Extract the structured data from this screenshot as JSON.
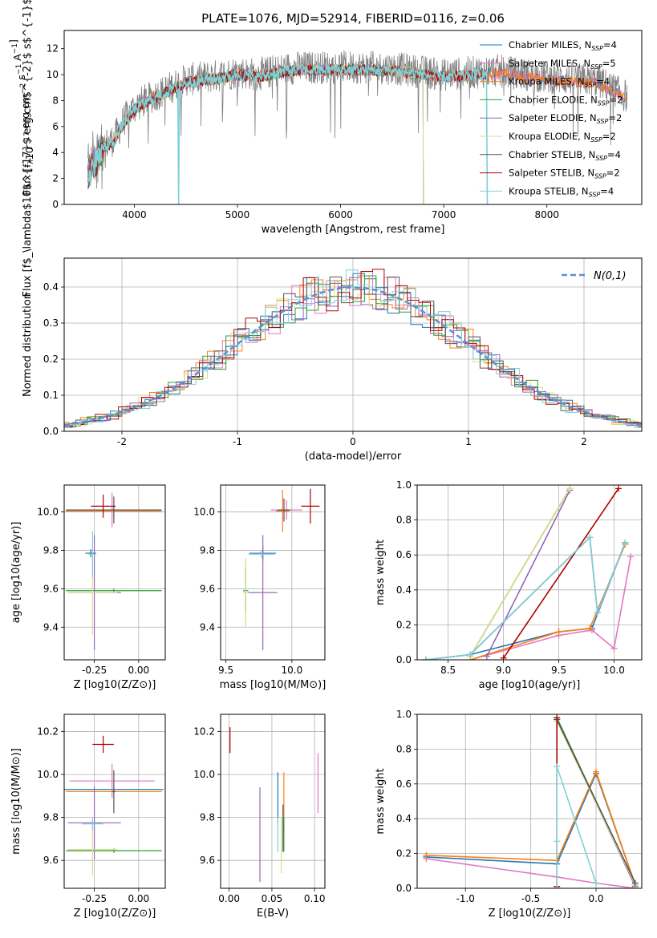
{
  "figure": {
    "title": "PLATE=1076, MJD=52914, FIBERID=0116, z=0.06"
  },
  "colors": {
    "chabrier_miles": "#1f77b4",
    "salpeter_miles": "#e377c2",
    "kroupa_miles": "#ff7f0e",
    "chabrier_elodie": "#2ca02c",
    "salpeter_elodie": "#9467bd",
    "kroupa_elodie": "#dbdb8d",
    "chabrier_stelib": "#555555",
    "salpeter_stelib": "#b00000",
    "kroupa_stelib": "#7fd1d8",
    "gauss": "#5b8fd9"
  },
  "chart_data": [
    {
      "id": "spectrum",
      "type": "line",
      "title": "PLATE=1076, MJD=52914, FIBERID=0116, z=0.06",
      "xlabel": "wavelength [Angstrom, rest frame]",
      "ylabel": "Flux [f$_\\lambda$10$^{-17}$ erg cm$^{-2}$ s$^{-1}$ A$^{-1}$]",
      "xlim": [
        3320,
        8920
      ],
      "ylim": [
        0,
        13.4
      ],
      "xticks": [
        4000,
        5000,
        6000,
        7000,
        8000
      ],
      "yticks": [
        0,
        2,
        4,
        6,
        8,
        10,
        12
      ],
      "legend": "upper right",
      "legend_entries": [
        {
          "label": "Chabrier MILES, N",
          "sub": "SSP",
          "suffix": "=4"
        },
        {
          "label": "Salpeter MILES, N",
          "sub": "SSP",
          "suffix": "=5"
        },
        {
          "label": "Kroupa MILES, N",
          "sub": "SSP",
          "suffix": "=4"
        },
        {
          "label": "Chabrier ELODIE, N",
          "sub": "SSP",
          "suffix": "=2"
        },
        {
          "label": "Salpeter ELODIE, N",
          "sub": "SSP",
          "suffix": "=2"
        },
        {
          "label": "Kroupa ELODIE, N",
          "sub": "SSP",
          "suffix": "=2"
        },
        {
          "label": "Chabrier STELIB, N",
          "sub": "SSP",
          "suffix": "=4"
        },
        {
          "label": "Salpeter STELIB, N",
          "sub": "SSP",
          "suffix": "=2"
        },
        {
          "label": "Kroupa STELIB, N",
          "sub": "SSP",
          "suffix": "=4"
        }
      ],
      "data_trend": [
        [
          3550,
          2.5
        ],
        [
          3700,
          4.5
        ],
        [
          3800,
          5.0
        ],
        [
          3900,
          6.5
        ],
        [
          4000,
          7.5
        ],
        [
          4100,
          8.0
        ],
        [
          4300,
          8.8
        ],
        [
          4500,
          9.6
        ],
        [
          4800,
          9.9
        ],
        [
          5000,
          10.2
        ],
        [
          5200,
          10.0
        ],
        [
          5500,
          10.5
        ],
        [
          6000,
          10.6
        ],
        [
          6500,
          10.5
        ],
        [
          7000,
          10.0
        ],
        [
          7500,
          10.3
        ],
        [
          8000,
          9.8
        ],
        [
          8500,
          9.5
        ],
        [
          8800,
          8.2
        ]
      ],
      "model_end": {
        "elodie": 6800,
        "stelib": 7420
      },
      "model_drop_miles": 4430
    },
    {
      "id": "residuals",
      "type": "bar",
      "xlabel": "(data-model)/error",
      "ylabel": "Normed distribution",
      "xlim": [
        -2.5,
        2.5
      ],
      "ylim": [
        0,
        0.48
      ],
      "xticks": [
        -2,
        -1,
        0,
        1,
        2
      ],
      "yticks": [
        0.0,
        0.1,
        0.2,
        0.3,
        0.4
      ],
      "legend_label": "N(0,1)",
      "bin_width": 0.1
    },
    {
      "id": "age_vs_Z",
      "type": "scatter",
      "xlabel": "Z [log10(Z/Z⊙)]",
      "ylabel": "age [log10(age/yr)]",
      "xlim": [
        -0.42,
        0.15
      ],
      "ylim": [
        9.23,
        10.14
      ],
      "xticks": [
        -0.25,
        0.0
      ],
      "yticks": [
        9.4,
        9.6,
        9.8,
        10.0
      ],
      "points": [
        {
          "m": "chabrier_miles",
          "x": -0.27,
          "xe": 0.03,
          "y": 9.785,
          "ye": 0.02
        },
        {
          "m": "salpeter_miles",
          "x": -0.15,
          "xe": 0.24,
          "y": 10.01,
          "ye": 0.09
        },
        {
          "m": "kroupa_miles",
          "x": -0.14,
          "xe": 0.27,
          "y": 10.005,
          "ye": 0.03
        },
        {
          "m": "chabrier_elodie",
          "x": -0.14,
          "xe": 0.27,
          "y": 9.59,
          "ye": 0.01
        },
        {
          "m": "salpeter_elodie",
          "x": -0.25,
          "xe": 0.15,
          "y": 9.58,
          "ye": 0.3
        },
        {
          "m": "kroupa_elodie",
          "x": -0.26,
          "xe": 0.14,
          "y": 9.58,
          "ye": 0.22
        },
        {
          "m": "chabrier_stelib",
          "x": -0.14,
          "xe": 0.27,
          "y": 10.01,
          "ye": 0.07
        },
        {
          "m": "salpeter_stelib",
          "x": -0.2,
          "xe": 0.07,
          "y": 10.03,
          "ye": 0.06
        },
        {
          "m": "kroupa_stelib",
          "x": -0.26,
          "xe": 0.02,
          "y": 9.78,
          "ye": 0.12
        }
      ]
    },
    {
      "id": "age_vs_mass",
      "type": "scatter",
      "xlabel": "mass [log10(M/M⊙)]",
      "ylabel": "",
      "xlim": [
        9.46,
        10.25
      ],
      "ylim": [
        9.23,
        10.14
      ],
      "xticks": [
        9.5,
        10.0
      ],
      "yticks": [
        9.4,
        9.6,
        9.8,
        10.0
      ],
      "points": [
        {
          "m": "chabrier_miles",
          "x": 9.78,
          "xe": 0.1,
          "y": 9.785,
          "ye": 0.04
        },
        {
          "m": "salpeter_miles",
          "x": 9.96,
          "xe": 0.12,
          "y": 10.01,
          "ye": 0.05
        },
        {
          "m": "kroupa_miles",
          "x": 9.93,
          "xe": 0.05,
          "y": 10.005,
          "ye": 0.11
        },
        {
          "m": "chabrier_elodie",
          "x": 9.65,
          "xe": 0.02,
          "y": 9.59,
          "ye": 0.12
        },
        {
          "m": "salpeter_elodie",
          "x": 9.78,
          "xe": 0.11,
          "y": 9.58,
          "ye": 0.3
        },
        {
          "m": "kroupa_elodie",
          "x": 9.65,
          "xe": 0.02,
          "y": 9.58,
          "ye": 0.18
        },
        {
          "m": "chabrier_stelib",
          "x": 9.94,
          "xe": 0.05,
          "y": 10.01,
          "ye": 0.06
        },
        {
          "m": "salpeter_stelib",
          "x": 10.14,
          "xe": 0.07,
          "y": 10.03,
          "ye": 0.09
        },
        {
          "m": "kroupa_stelib",
          "x": 9.77,
          "xe": 0.1,
          "y": 9.78,
          "ye": 0.02
        }
      ]
    },
    {
      "id": "weight_vs_age",
      "type": "line",
      "xlabel": "age [log10(age/yr)]",
      "ylabel": "mass weight",
      "xlim": [
        8.22,
        10.25
      ],
      "ylim": [
        0,
        1
      ],
      "xticks": [
        8.5,
        9.0,
        9.5,
        10.0
      ],
      "yticks": [
        0.0,
        0.2,
        0.4,
        0.6,
        0.8,
        1.0
      ],
      "series": [
        {
          "m": "chabrier_miles",
          "x": [
            8.3,
            8.7,
            9.5,
            9.8,
            10.1
          ],
          "y": [
            0.0,
            0.03,
            0.16,
            0.18,
            0.67
          ]
        },
        {
          "m": "salpeter_miles",
          "x": [
            8.7,
            9.5,
            9.8,
            10.0,
            10.15
          ],
          "y": [
            0.0,
            0.14,
            0.17,
            0.065,
            0.59
          ]
        },
        {
          "m": "kroupa_miles",
          "x": [
            8.7,
            9.5,
            9.78,
            10.1
          ],
          "y": [
            0.0,
            0.16,
            0.18,
            0.66
          ]
        },
        {
          "m": "chabrier_elodie",
          "x": [
            8.7,
            9.6
          ],
          "y": [
            0.02,
            0.98
          ]
        },
        {
          "m": "salpeter_elodie",
          "x": [
            8.85,
            9.6
          ],
          "y": [
            0.02,
            0.97
          ]
        },
        {
          "m": "kroupa_elodie",
          "x": [
            8.7,
            9.6
          ],
          "y": [
            0.02,
            0.98
          ]
        },
        {
          "m": "chabrier_stelib",
          "x": [
            8.3,
            8.7,
            9.78,
            9.85,
            10.1
          ],
          "y": [
            0.0,
            0.03,
            0.7,
            0.27,
            0.67
          ]
        },
        {
          "m": "salpeter_stelib",
          "x": [
            9.0,
            10.04
          ],
          "y": [
            0.01,
            0.98
          ]
        },
        {
          "m": "kroupa_stelib",
          "x": [
            8.3,
            8.7,
            9.78,
            9.85,
            10.1
          ],
          "y": [
            0.0,
            0.03,
            0.7,
            0.27,
            0.67
          ]
        }
      ]
    },
    {
      "id": "mass_vs_Z",
      "type": "scatter",
      "xlabel": "Z [log10(Z/Z⊙)]",
      "ylabel": "mass [log10(M/M⊙)]",
      "xlim": [
        -0.42,
        0.15
      ],
      "ylim": [
        9.47,
        10.28
      ],
      "xticks": [
        -0.25,
        0.0
      ],
      "yticks": [
        9.6,
        9.8,
        10.0,
        10.2
      ],
      "points": [
        {
          "m": "chabrier_miles",
          "x": -0.14,
          "xe": 0.28,
          "y": 9.93,
          "ye": 0.01
        },
        {
          "m": "salpeter_miles",
          "x": -0.15,
          "xe": 0.24,
          "y": 9.97,
          "ye": 0.08
        },
        {
          "m": "kroupa_miles",
          "x": -0.14,
          "xe": 0.27,
          "y": 9.92,
          "ye": 0.01
        },
        {
          "m": "chabrier_elodie",
          "x": -0.14,
          "xe": 0.27,
          "y": 9.645,
          "ye": 0.01
        },
        {
          "m": "salpeter_elodie",
          "x": -0.25,
          "xe": 0.15,
          "y": 9.775,
          "ye": 0.17
        },
        {
          "m": "kroupa_elodie",
          "x": -0.26,
          "xe": 0.14,
          "y": 9.65,
          "ye": 0.12
        },
        {
          "m": "chabrier_stelib",
          "x": -0.14,
          "xe": 0.01,
          "y": 9.92,
          "ye": 0.1
        },
        {
          "m": "salpeter_stelib",
          "x": -0.2,
          "xe": 0.06,
          "y": 10.14,
          "ye": 0.04
        },
        {
          "m": "kroupa_stelib",
          "x": -0.26,
          "xe": 0.06,
          "y": 9.77,
          "ye": 0.03
        }
      ]
    },
    {
      "id": "mass_vs_ebv",
      "type": "scatter",
      "xlabel": "E(B-V)",
      "ylabel": "",
      "xlim": [
        -0.01,
        0.112
      ],
      "ylim": [
        9.47,
        10.28
      ],
      "xticks": [
        0.0,
        0.05,
        0.1
      ],
      "yticks": [
        9.6,
        9.8,
        10.0,
        10.2
      ],
      "points": [
        {
          "m": "chabrier_miles",
          "x": 0.057,
          "xe": 0.0,
          "y": 9.89,
          "ye": 0.12
        },
        {
          "m": "salpeter_miles",
          "x": 0.104,
          "xe": 0.0,
          "y": 9.96,
          "ye": 0.14
        },
        {
          "m": "kroupa_miles",
          "x": 0.064,
          "xe": 0.0,
          "y": 9.87,
          "ye": 0.14
        },
        {
          "m": "chabrier_elodie",
          "x": 0.064,
          "xe": 0.0,
          "y": 9.72,
          "ye": 0.08
        },
        {
          "m": "salpeter_elodie",
          "x": 0.036,
          "xe": 0.0,
          "y": 9.72,
          "ye": 0.22
        },
        {
          "m": "kroupa_elodie",
          "x": 0.061,
          "xe": 0.0,
          "y": 9.67,
          "ye": 0.13
        },
        {
          "m": "chabrier_stelib",
          "x": 0.063,
          "xe": 0.0,
          "y": 9.75,
          "ye": 0.11
        },
        {
          "m": "salpeter_stelib",
          "x": 0.001,
          "xe": 0.0,
          "y": 10.16,
          "ye": 0.06
        },
        {
          "m": "kroupa_stelib",
          "x": 0.057,
          "xe": 0.0,
          "y": 9.72,
          "ye": 0.08
        }
      ]
    },
    {
      "id": "weight_vs_Z",
      "type": "line",
      "xlabel": "Z [log10(Z/Z⊙)]",
      "ylabel": "mass weight",
      "xlim": [
        -1.37,
        0.35
      ],
      "ylim": [
        0,
        1
      ],
      "xticks": [
        -1.0,
        -0.5,
        0.0
      ],
      "yticks": [
        0.0,
        0.2,
        0.4,
        0.6,
        0.8,
        1.0
      ],
      "series": [
        {
          "m": "chabrier_miles",
          "x": [
            -1.3,
            -0.3,
            0.0,
            0.3
          ],
          "y": [
            0.18,
            0.14,
            0.66,
            0.02
          ]
        },
        {
          "m": "salpeter_miles",
          "x": [
            -1.3,
            -0.3,
            0.0,
            0.3
          ],
          "y": [
            0.17,
            0.065,
            0.03,
            0.0
          ]
        },
        {
          "m": "kroupa_miles",
          "x": [
            -1.3,
            -0.3,
            0.0,
            0.3
          ],
          "y": [
            0.19,
            0.16,
            0.67,
            0.02
          ]
        },
        {
          "m": "chabrier_elodie",
          "x": [
            -0.3,
            0.3
          ],
          "y": [
            0.98,
            0.02
          ]
        },
        {
          "m": "salpeter_elodie",
          "x": [
            -0.3,
            0.3
          ],
          "y": [
            0.97,
            0.01
          ]
        },
        {
          "m": "kroupa_elodie",
          "x": [
            -0.3,
            0.3
          ],
          "y": [
            0.96,
            0.02
          ]
        },
        {
          "m": "chabrier_stelib",
          "x": [
            -0.3,
            0.3
          ],
          "y": [
            0.97,
            0.03
          ]
        },
        {
          "m": "salpeter_stelib",
          "x": [
            -0.3,
            -0.3
          ],
          "y": [
            0.01,
            0.98
          ]
        },
        {
          "m": "kroupa_stelib",
          "x": [
            -0.3,
            -0.3,
            -0.3,
            0.0
          ],
          "y": [
            0.0,
            0.27,
            0.7,
            0.03
          ]
        }
      ]
    }
  ]
}
